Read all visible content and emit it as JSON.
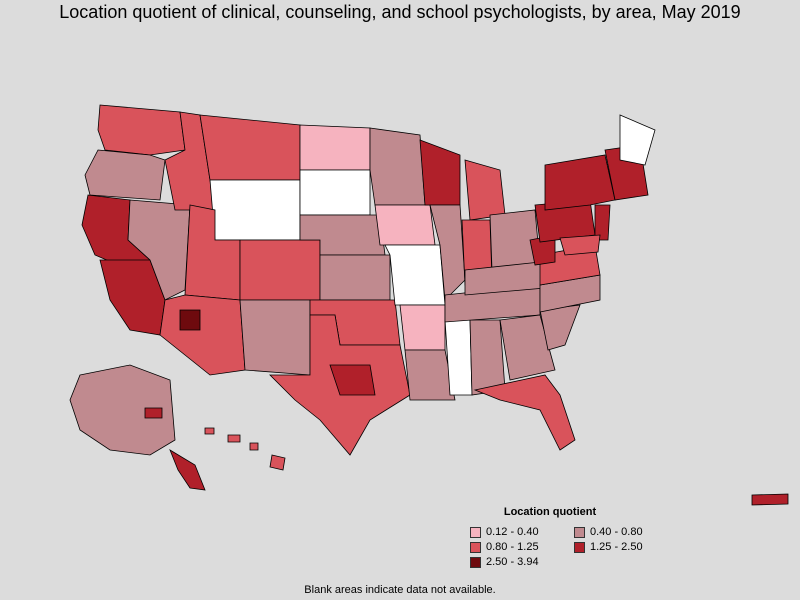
{
  "title": "Location quotient of clinical, counseling, and school psychologists, by area, May 2019",
  "legend": {
    "title": "Location quotient",
    "items": [
      {
        "label": "0.12 - 0.40",
        "color": "#f6b3bf"
      },
      {
        "label": "0.40 - 0.80",
        "color": "#c08a8f"
      },
      {
        "label": "0.80 - 1.25",
        "color": "#d9535b"
      },
      {
        "label": "1.25 - 2.50",
        "color": "#b0202a"
      },
      {
        "label": "2.50 - 3.94",
        "color": "#6e0a0e"
      }
    ]
  },
  "footnote": "Blank areas indicate data not available.",
  "colors": {
    "background": "#dcdcdc",
    "border": "#000000",
    "no_data": "#ffffff"
  }
}
